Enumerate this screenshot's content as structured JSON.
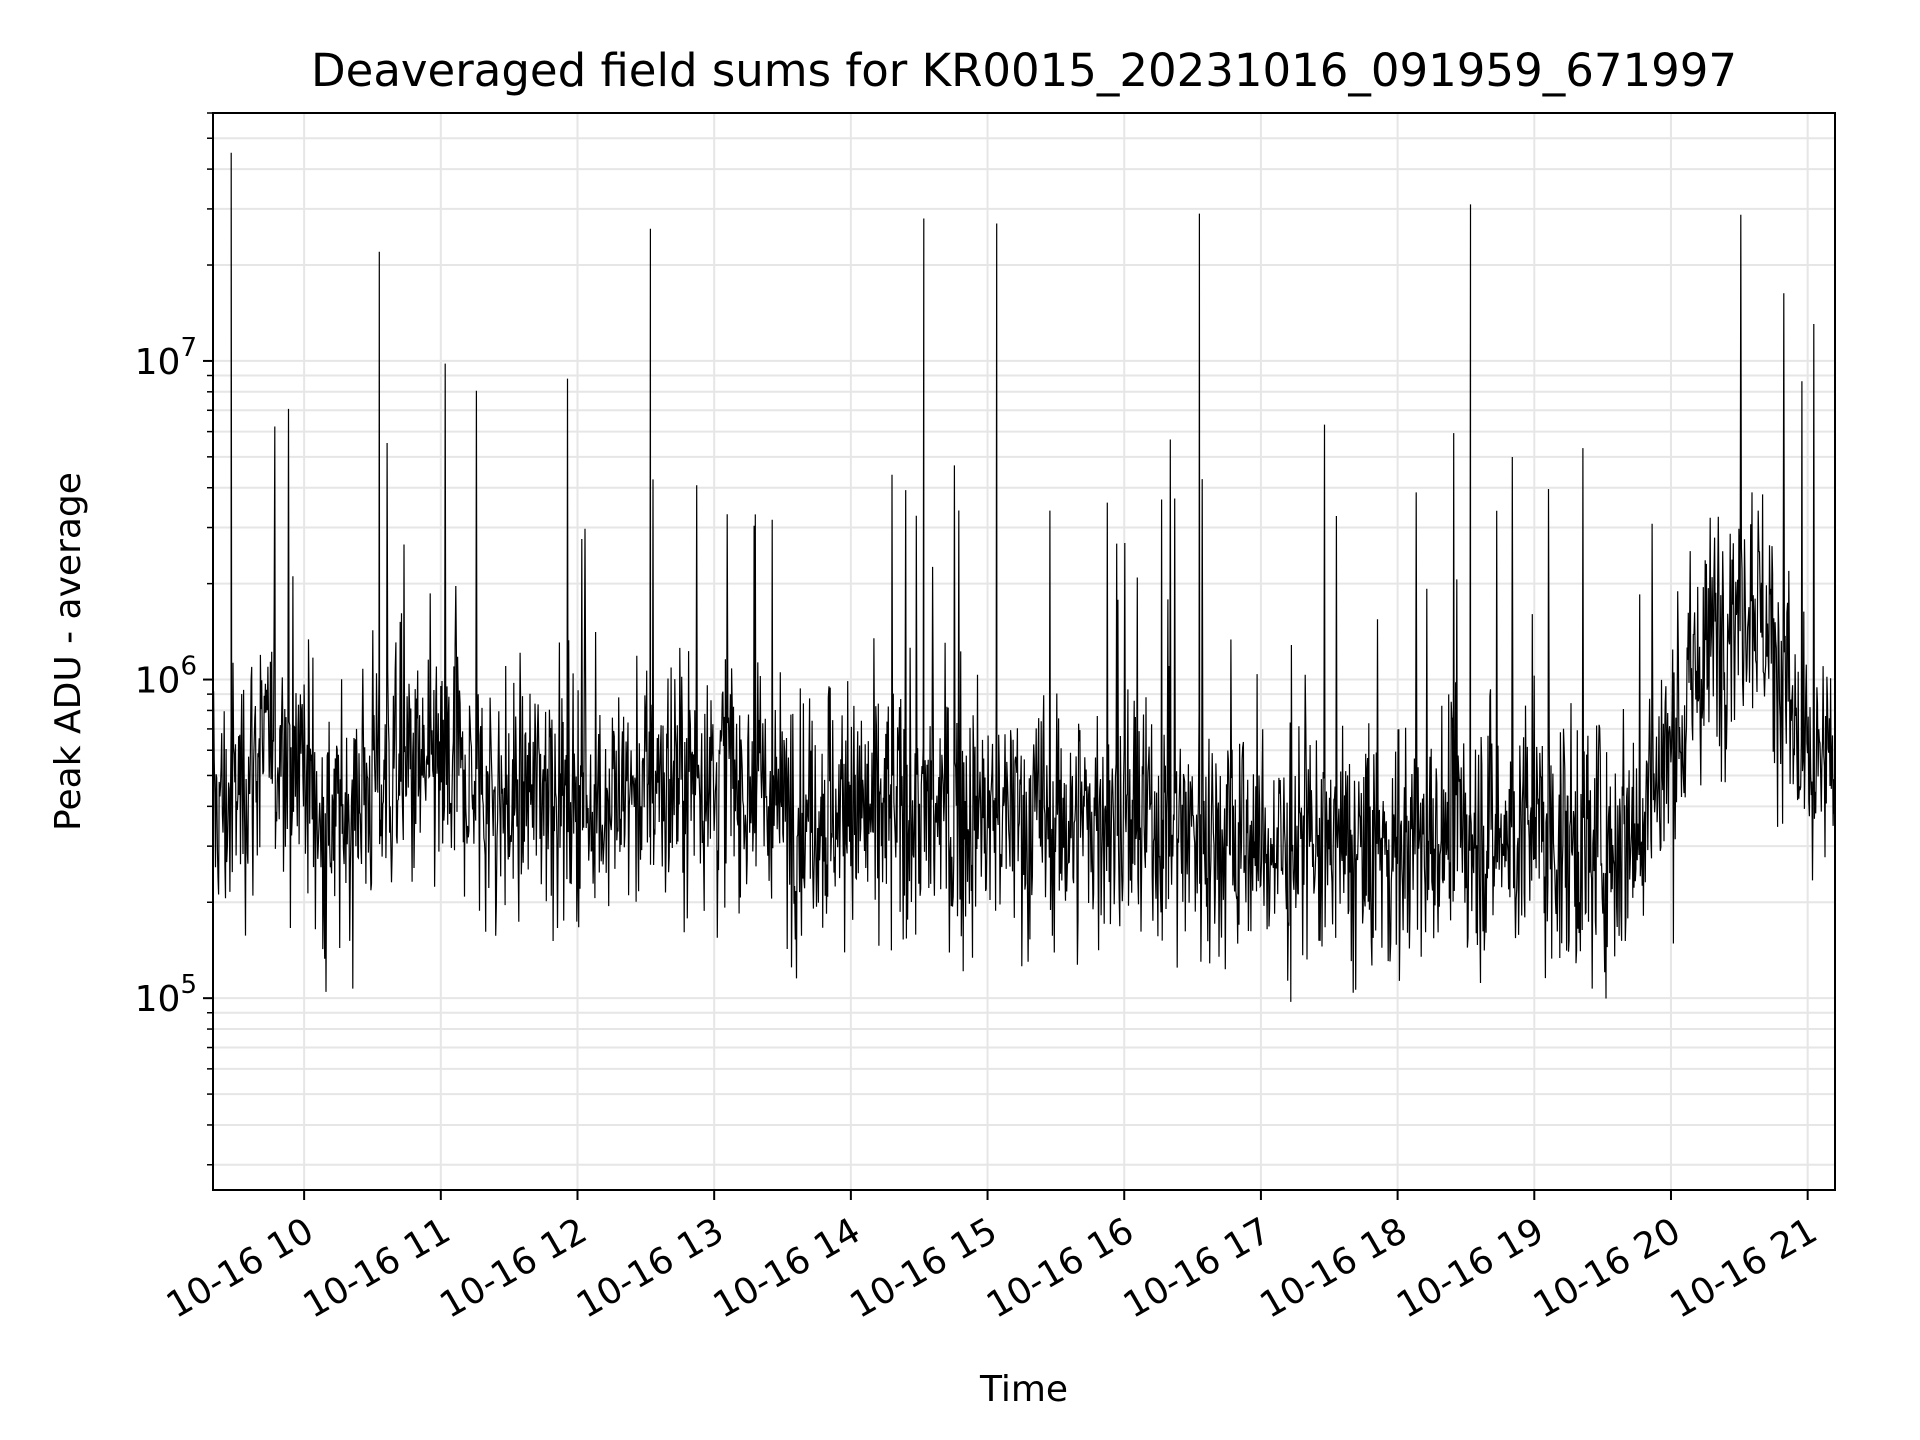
{
  "chart_data": {
    "type": "line",
    "title": "Deaveraged field sums for KR0015_20231016_091959_671997",
    "xlabel": "Time",
    "ylabel": "Peak ADU - average",
    "yscale": "log",
    "ylim": [
      25000,
      60000000
    ],
    "xlim": [
      "2023-10-16 09:20",
      "2023-10-16 21:12"
    ],
    "grid": "major and minor",
    "line_color": "#000000",
    "x_ticks": [
      {
        "value": "2023-10-16 10:00",
        "label": "10-16 10"
      },
      {
        "value": "2023-10-16 11:00",
        "label": "10-16 11"
      },
      {
        "value": "2023-10-16 12:00",
        "label": "10-16 12"
      },
      {
        "value": "2023-10-16 13:00",
        "label": "10-16 13"
      },
      {
        "value": "2023-10-16 14:00",
        "label": "10-16 14"
      },
      {
        "value": "2023-10-16 15:00",
        "label": "10-16 15"
      },
      {
        "value": "2023-10-16 16:00",
        "label": "10-16 16"
      },
      {
        "value": "2023-10-16 17:00",
        "label": "10-16 17"
      },
      {
        "value": "2023-10-16 18:00",
        "label": "10-16 18"
      },
      {
        "value": "2023-10-16 19:00",
        "label": "10-16 19"
      },
      {
        "value": "2023-10-16 20:00",
        "label": "10-16 20"
      },
      {
        "value": "2023-10-16 21:00",
        "label": "10-16 21"
      }
    ],
    "y_ticks": [
      {
        "value": 100000,
        "base": "10",
        "exp": "5"
      },
      {
        "value": 1000000,
        "base": "10",
        "exp": "6"
      },
      {
        "value": 10000000,
        "base": "10",
        "exp": "7"
      }
    ],
    "series": [
      {
        "x": [
          "2023-10-16 09:20",
          "2023-10-16 09:27",
          "2023-10-16 09:28",
          "2023-10-16 09:40",
          "2023-10-16 10:00",
          "2023-10-16 10:09",
          "2023-10-16 10:30",
          "2023-10-16 10:33",
          "2023-10-16 11:07",
          "2023-10-16 11:30",
          "2023-10-16 11:48",
          "2023-10-16 12:00",
          "2023-10-16 12:30",
          "2023-10-16 12:32",
          "2023-10-16 12:50",
          "2023-10-16 13:08",
          "2023-10-16 13:30",
          "2023-10-16 13:46",
          "2023-10-16 14:00",
          "2023-10-16 14:30",
          "2023-10-16 14:32",
          "2023-10-16 14:44",
          "2023-10-16 15:00",
          "2023-10-16 15:04",
          "2023-10-16 15:30",
          "2023-10-16 15:50",
          "2023-10-16 16:00",
          "2023-10-16 16:30",
          "2023-10-16 16:33",
          "2023-10-16 17:00",
          "2023-10-16 17:30",
          "2023-10-16 17:50",
          "2023-10-16 18:00",
          "2023-10-16 18:30",
          "2023-10-16 18:32",
          "2023-10-16 19:00",
          "2023-10-16 19:30",
          "2023-10-16 19:45",
          "2023-10-16 20:00",
          "2023-10-16 20:20",
          "2023-10-16 20:36",
          "2023-10-16 20:50",
          "2023-10-16 21:00",
          "2023-10-16 21:12"
        ],
        "y": [
          400000,
          400000,
          45000000,
          600000,
          600000,
          300000,
          500000,
          22000000,
          500000,
          400000,
          500000,
          400000,
          450000,
          26000000,
          500000,
          500000,
          400000,
          400000,
          380000,
          380000,
          28000000,
          370000,
          370000,
          27000000,
          360000,
          360000,
          350000,
          350000,
          29000000,
          300000,
          290000,
          280000,
          300000,
          330000,
          31000000,
          320000,
          300000,
          350000,
          600000,
          1500000,
          2000000,
          1000000,
          450000,
          550000
        ]
      }
    ]
  }
}
